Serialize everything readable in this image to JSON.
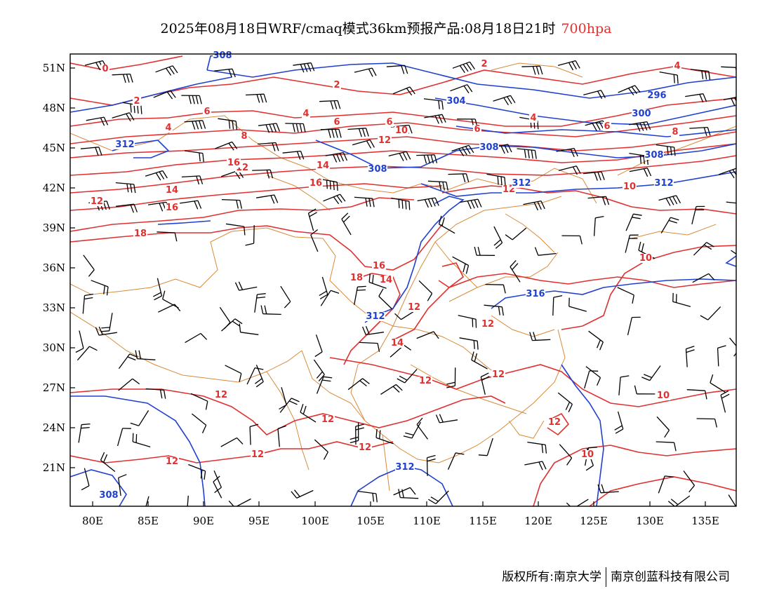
{
  "title": {
    "text": "2025年08月18日WRF/cmaq模式36km预报产品:08月18日21时",
    "level": "700hpa"
  },
  "colors": {
    "temperature": "#e03030",
    "height": "#2040d0",
    "border": "#d88a3a",
    "wind": "#000000"
  },
  "map": {
    "lon_ticks": [
      "80E",
      "85E",
      "90E",
      "95E",
      "100E",
      "105E",
      "110E",
      "115E",
      "120E",
      "125E",
      "130E",
      "135E"
    ],
    "lat_ticks": [
      "51N",
      "48N",
      "45N",
      "42N",
      "39N",
      "36N",
      "33N",
      "30N",
      "27N",
      "24N",
      "21N"
    ],
    "temperature_labels": [
      "0",
      "2",
      "2",
      "2",
      "4",
      "4",
      "4",
      "4",
      "6",
      "6",
      "6",
      "6",
      "6",
      "8",
      "8",
      "10",
      "10",
      "10",
      "10",
      "10",
      "12",
      "12",
      "12",
      "12",
      "12",
      "12",
      "12",
      "12",
      "12",
      "12",
      "12",
      "12",
      "12",
      "12",
      "14",
      "14",
      "14",
      "14",
      "14",
      "16",
      "16",
      "16",
      "16",
      "18",
      "18"
    ],
    "height_labels": [
      "308",
      "312",
      "304",
      "300",
      "296",
      "308",
      "308",
      "308",
      "312",
      "312",
      "316",
      "312",
      "312",
      "308"
    ]
  },
  "footer": {
    "left": "版权所有:南京大学",
    "right": "南京创蓝科技有限公司"
  }
}
